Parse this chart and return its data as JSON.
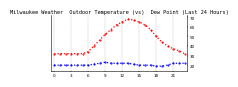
{
  "title": "Milwaukee Weather  Outdoor Temperature (vs)  Dew Point (Last 24 Hours)",
  "bg_color": "#ffffff",
  "grid_color": "#999999",
  "temp_color": "#ff0000",
  "dew_color": "#0000ff",
  "temp_values": [
    32,
    32,
    32,
    32,
    32,
    32,
    34,
    40,
    46,
    52,
    57,
    62,
    65,
    68,
    67,
    65,
    62,
    57,
    50,
    44,
    40,
    37,
    35,
    32
  ],
  "dew_values": [
    20,
    20,
    20,
    20,
    20,
    20,
    20,
    21,
    22,
    23,
    22,
    22,
    22,
    22,
    21,
    20,
    20,
    20,
    19,
    19,
    20,
    22,
    22,
    22
  ],
  "ylim": [
    14,
    72
  ],
  "yticks": [
    20,
    30,
    40,
    50,
    60,
    70
  ],
  "ytick_labels": [
    "20",
    "30",
    "40",
    "50",
    "60",
    "70"
  ],
  "n_points": 24,
  "title_fontsize": 3.8,
  "tick_fontsize": 3.0,
  "line_width": 0.9,
  "marker_size": 1.0,
  "grid_step": 3
}
